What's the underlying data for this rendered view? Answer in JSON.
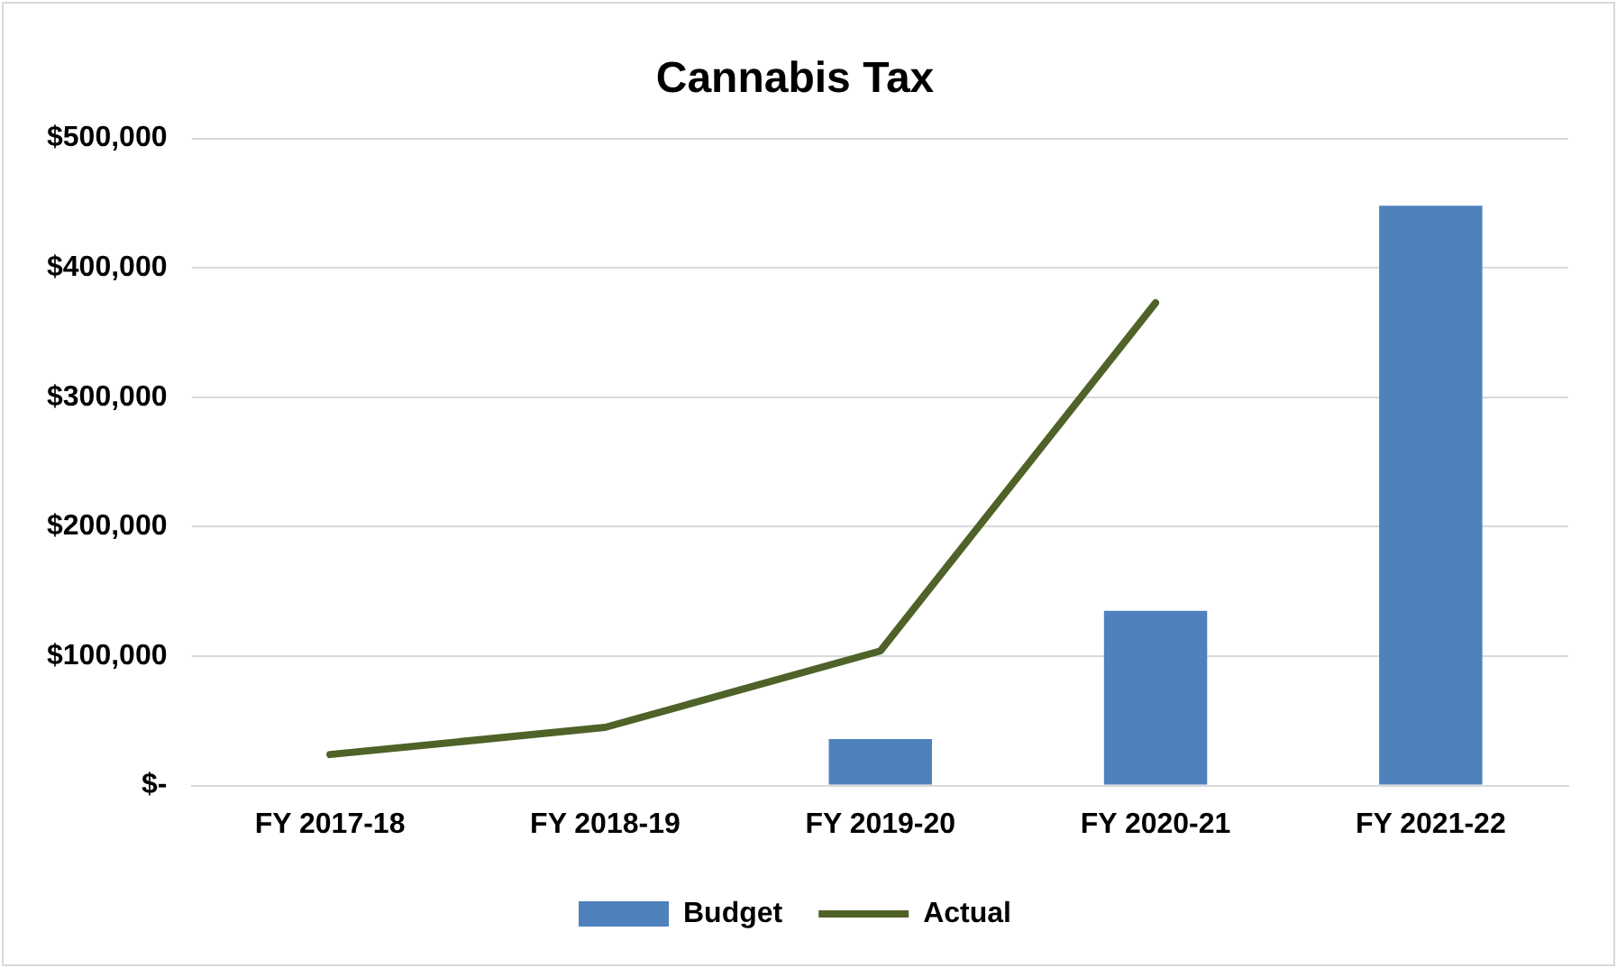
{
  "chart_data": {
    "type": "bar",
    "title": "Cannabis Tax",
    "categories": [
      "FY 2017-18",
      "FY 2018-19",
      "FY 2019-20",
      "FY 2020-21",
      "FY 2021-22"
    ],
    "series": [
      {
        "name": "Budget",
        "color": "#4f81bd",
        "values": [
          null,
          null,
          36000,
          135000,
          448000
        ]
      },
      {
        "name": "Actual",
        "type": "line",
        "color": "#4f6228",
        "values": [
          24000,
          45000,
          104000,
          373000,
          null
        ]
      }
    ],
    "ylim": [
      0,
      500000
    ],
    "yticks": [
      {
        "value": 0,
        "label": "$-"
      },
      {
        "value": 100000,
        "label": "$100,000"
      },
      {
        "value": 200000,
        "label": "$200,000"
      },
      {
        "value": 300000,
        "label": "$300,000"
      },
      {
        "value": 400000,
        "label": "$400,000"
      },
      {
        "value": 500000,
        "label": "$500,000"
      }
    ],
    "grid": "y",
    "legend": "bottom",
    "marker": "none"
  }
}
